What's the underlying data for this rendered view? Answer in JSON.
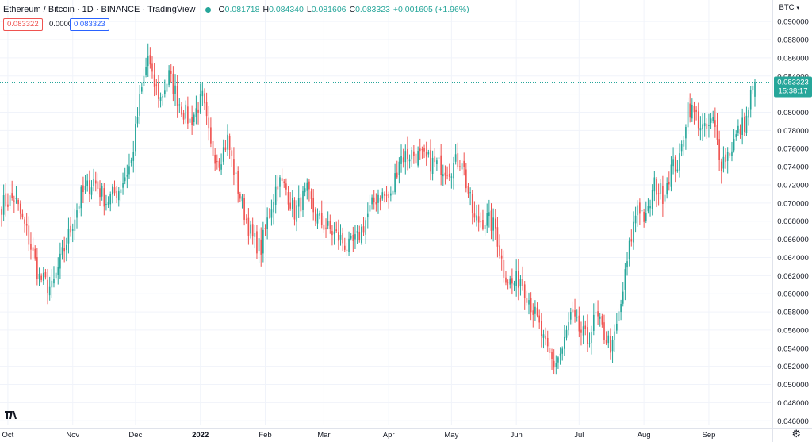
{
  "header": {
    "title": "Ethereum / Bitcoin · 1D · BINANCE · TradingView",
    "ohlc": [
      {
        "label": "O",
        "value": "0.081718"
      },
      {
        "label": "H",
        "value": "0.084340"
      },
      {
        "label": "L",
        "value": "0.081606"
      },
      {
        "label": "C",
        "value": "0.083323"
      }
    ],
    "change": "+0.001605 (+1.96%)"
  },
  "price_boxes": {
    "bid": "0.083322",
    "spread": "0.000001",
    "ask": "0.083323"
  },
  "currency": "BTC",
  "current_price": {
    "price": "0.083323",
    "countdown": "15:38:17"
  },
  "colors": {
    "up": "#26a69a",
    "down": "#ef5350",
    "grid": "#f0f3fa",
    "axis_text": "#131722",
    "accent": "#2962ff"
  },
  "icons": {
    "logo": "tradingview-logo-icon",
    "settings": "gear-icon",
    "currency_menu": "chevron-down-icon"
  },
  "chart_data": {
    "type": "candlestick",
    "ylim": [
      0.0455,
      0.0915
    ],
    "y_ticks": [
      "0.090000",
      "0.088000",
      "0.086000",
      "0.084000",
      "0.082000",
      "0.080000",
      "0.078000",
      "0.076000",
      "0.074000",
      "0.072000",
      "0.070000",
      "0.068000",
      "0.066000",
      "0.064000",
      "0.062000",
      "0.060000",
      "0.058000",
      "0.056000",
      "0.054000",
      "0.052000",
      "0.050000",
      "0.048000",
      "0.046000"
    ],
    "x_ticks": [
      {
        "label": "Oct",
        "index": 3
      },
      {
        "label": "Nov",
        "index": 34
      },
      {
        "label": "Dec",
        "index": 64
      },
      {
        "label": "2022",
        "index": 95
      },
      {
        "label": "Feb",
        "index": 126
      },
      {
        "label": "Mar",
        "index": 154
      },
      {
        "label": "Apr",
        "index": 185
      },
      {
        "label": "May",
        "index": 215
      },
      {
        "label": "Jun",
        "index": 246
      },
      {
        "label": "Jul",
        "index": 276
      },
      {
        "label": "Aug",
        "index": 307
      },
      {
        "label": "Sep",
        "index": 338
      }
    ],
    "last_price": 0.083323,
    "anchors": [
      [
        0,
        0.0698
      ],
      [
        6,
        0.0706
      ],
      [
        12,
        0.0668
      ],
      [
        18,
        0.0618
      ],
      [
        24,
        0.0605
      ],
      [
        30,
        0.065
      ],
      [
        38,
        0.0708
      ],
      [
        44,
        0.0725
      ],
      [
        50,
        0.0702
      ],
      [
        56,
        0.0715
      ],
      [
        62,
        0.0745
      ],
      [
        66,
        0.0812
      ],
      [
        70,
        0.0862
      ],
      [
        72,
        0.0835
      ],
      [
        76,
        0.0815
      ],
      [
        80,
        0.084
      ],
      [
        86,
        0.0805
      ],
      [
        90,
        0.079
      ],
      [
        96,
        0.0815
      ],
      [
        100,
        0.076
      ],
      [
        104,
        0.0748
      ],
      [
        108,
        0.077
      ],
      [
        112,
        0.0725
      ],
      [
        116,
        0.069
      ],
      [
        120,
        0.066
      ],
      [
        124,
        0.065
      ],
      [
        128,
        0.069
      ],
      [
        132,
        0.0725
      ],
      [
        136,
        0.0715
      ],
      [
        140,
        0.069
      ],
      [
        146,
        0.0712
      ],
      [
        150,
        0.0685
      ],
      [
        156,
        0.0672
      ],
      [
        162,
        0.066
      ],
      [
        166,
        0.065
      ],
      [
        170,
        0.066
      ],
      [
        176,
        0.0692
      ],
      [
        180,
        0.071
      ],
      [
        186,
        0.0705
      ],
      [
        190,
        0.075
      ],
      [
        196,
        0.0755
      ],
      [
        202,
        0.0748
      ],
      [
        208,
        0.0742
      ],
      [
        214,
        0.0738
      ],
      [
        220,
        0.075
      ],
      [
        222,
        0.0722
      ],
      [
        226,
        0.068
      ],
      [
        232,
        0.0682
      ],
      [
        236,
        0.0672
      ],
      [
        240,
        0.0625
      ],
      [
        244,
        0.061
      ],
      [
        248,
        0.0618
      ],
      [
        252,
        0.0595
      ],
      [
        256,
        0.057
      ],
      [
        260,
        0.054
      ],
      [
        264,
        0.0522
      ],
      [
        268,
        0.0538
      ],
      [
        272,
        0.0575
      ],
      [
        276,
        0.056
      ],
      [
        280,
        0.0548
      ],
      [
        284,
        0.0575
      ],
      [
        288,
        0.0555
      ],
      [
        292,
        0.054
      ],
      [
        296,
        0.0588
      ],
      [
        300,
        0.065
      ],
      [
        304,
        0.07
      ],
      [
        308,
        0.068
      ],
      [
        312,
        0.072
      ],
      [
        316,
        0.071
      ],
      [
        320,
        0.0738
      ],
      [
        324,
        0.0745
      ],
      [
        328,
        0.0808
      ],
      [
        332,
        0.0795
      ],
      [
        336,
        0.0778
      ],
      [
        340,
        0.079
      ],
      [
        344,
        0.0745
      ],
      [
        348,
        0.0758
      ],
      [
        352,
        0.0778
      ],
      [
        356,
        0.0792
      ],
      [
        358,
        0.0818
      ],
      [
        360,
        0.0833
      ]
    ]
  }
}
